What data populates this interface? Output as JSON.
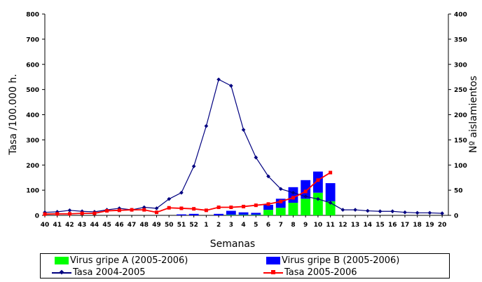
{
  "chart_data": {
    "type": "bar+line",
    "categories": [
      "40",
      "41",
      "42",
      "43",
      "44",
      "45",
      "46",
      "47",
      "48",
      "49",
      "50",
      "51",
      "52",
      "1",
      "2",
      "3",
      "4",
      "5",
      "6",
      "7",
      "8",
      "9",
      "10",
      "11",
      "12",
      "13",
      "14",
      "15",
      "16",
      "17",
      "18",
      "19",
      "20"
    ],
    "xlabel": "Semanas",
    "ylabel_left": "Tasa /100.000 h.",
    "ylabel_right": "Nº aislamientos",
    "ylim_left": [
      0,
      800
    ],
    "ylim_right": [
      0,
      400
    ],
    "yticks_left": [
      "0",
      "100",
      "200",
      "300",
      "400",
      "500",
      "600",
      "700",
      "800"
    ],
    "yticks_right": [
      "0",
      "50",
      "100",
      "150",
      "200",
      "250",
      "300",
      "350",
      "400"
    ],
    "bar_series": [
      {
        "name": "Virus gripe A (2005-2006)",
        "color": "#00ff00",
        "axis": "right",
        "values": [
          0,
          0,
          0,
          0,
          0,
          0,
          0,
          0,
          0,
          0,
          0,
          0,
          0,
          0,
          0,
          1,
          1,
          1,
          11,
          15,
          25,
          33,
          45,
          28,
          null,
          null,
          null,
          null,
          null,
          null,
          null,
          null,
          null
        ]
      },
      {
        "name": "Virus gripe B (2005-2006)",
        "color": "#0000ff",
        "axis": "right",
        "values": [
          0,
          0,
          0,
          0,
          0,
          0,
          0,
          0,
          0,
          0,
          0,
          2,
          3,
          0,
          3,
          8,
          5,
          4,
          10,
          18,
          31,
          37,
          42,
          36,
          null,
          null,
          null,
          null,
          null,
          null,
          null,
          null,
          null
        ]
      }
    ],
    "line_series": [
      {
        "name": "Tasa 2004-2005",
        "color": "#000080",
        "marker": "diamond",
        "axis": "left",
        "values": [
          12,
          14,
          20,
          16,
          14,
          22,
          28,
          22,
          32,
          28,
          65,
          90,
          195,
          355,
          540,
          515,
          340,
          230,
          155,
          105,
          90,
          75,
          65,
          50,
          22,
          22,
          18,
          16,
          16,
          12,
          10,
          10,
          8
        ]
      },
      {
        "name": "Tasa 2005-2006",
        "color": "#ff0000",
        "marker": "square",
        "axis": "left",
        "values": [
          5,
          6,
          6,
          8,
          8,
          18,
          20,
          22,
          22,
          12,
          30,
          28,
          26,
          20,
          32,
          32,
          35,
          40,
          45,
          55,
          70,
          95,
          140,
          170,
          null,
          null,
          null,
          null,
          null,
          null,
          null,
          null,
          null
        ]
      }
    ],
    "grid": false,
    "legend_position": "bottom"
  }
}
